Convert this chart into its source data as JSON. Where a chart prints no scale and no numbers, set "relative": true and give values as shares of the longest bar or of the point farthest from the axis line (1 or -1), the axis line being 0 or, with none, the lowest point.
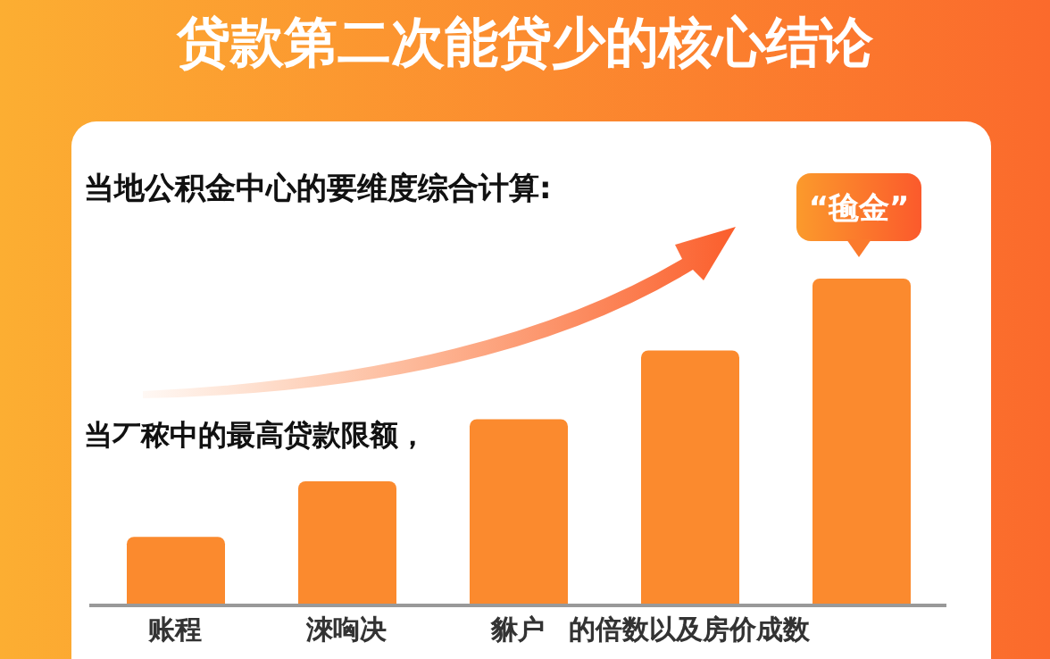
{
  "chart_data": {
    "type": "bar",
    "title": "贷款第二次能贷少的核心结论",
    "subtitle": "当地公积金中心的要维度综合计算:",
    "annotations": [
      "当丆秾中的最高贷款限额，",
      "“毺金”"
    ],
    "categories": [
      "账程",
      "淶哅决",
      "貅户",
      "的倍数以及房价成数",
      null
    ],
    "values": [
      0.21,
      0.38,
      0.57,
      0.78,
      1
    ],
    "color": "#fb8a2e",
    "relative": true
  }
}
